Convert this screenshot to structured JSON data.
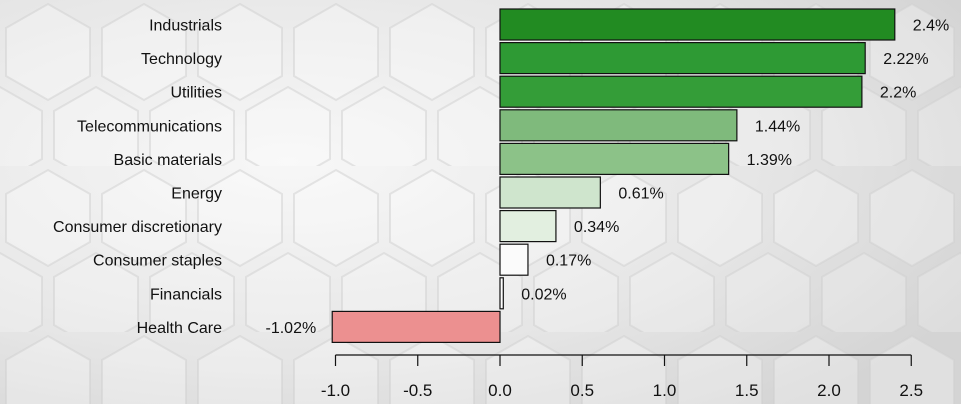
{
  "chart_data": {
    "type": "bar",
    "orientation": "horizontal",
    "categories": [
      "Industrials",
      "Technology",
      "Utilities",
      "Telecommunications",
      "Basic materials",
      "Energy",
      "Consumer discretionary",
      "Consumer staples",
      "Financials",
      "Health Care"
    ],
    "values": [
      2.4,
      2.22,
      2.2,
      1.44,
      1.39,
      0.61,
      0.34,
      0.17,
      0.02,
      -1.02
    ],
    "value_labels": [
      "2.4%",
      "2.22%",
      "2.2%",
      "1.44%",
      "1.39%",
      "0.61%",
      "0.34%",
      "0.17%",
      "0.02%",
      "-1.02%"
    ],
    "bar_colors": [
      "#228b22",
      "#2e9a34",
      "#349d38",
      "#7fba7c",
      "#8cc288",
      "#cfe5cd",
      "#e2efe0",
      "#fbfbfb",
      "#ffffff",
      "#ec9090"
    ],
    "xlim": [
      -1.0,
      2.5
    ],
    "xticks": [
      -1.0,
      -0.5,
      0.0,
      0.5,
      1.0,
      1.5,
      2.0,
      2.5
    ],
    "xtick_labels": [
      "-1.0",
      "-0.5",
      "0.0",
      "0.5",
      "1.0",
      "1.5",
      "2.0",
      "2.5"
    ],
    "grid": false,
    "legend": "none",
    "title": "",
    "xlabel": "",
    "ylabel": ""
  }
}
